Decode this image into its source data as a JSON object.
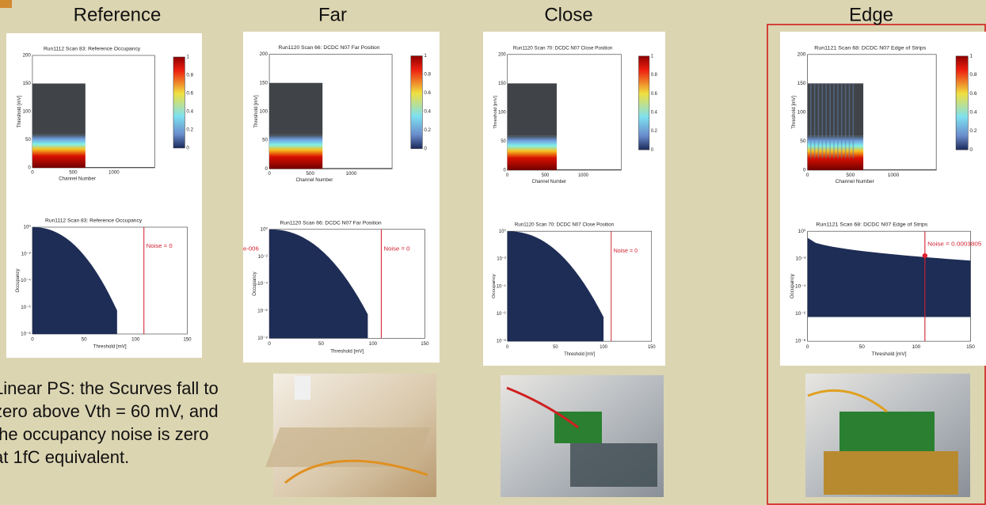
{
  "headings": [
    "Reference",
    "Far",
    "Close",
    "Edge"
  ],
  "plot_labels": {
    "top_xlabel": "Channel Number",
    "top_ylabel": "Threshold [mV]",
    "top_xticks": [
      "0",
      "500",
      "1000"
    ],
    "top_yticks": [
      "0",
      "50",
      "100",
      "150",
      "200"
    ],
    "colorbar_ticks": [
      "0",
      "0.2",
      "0.4",
      "0.6",
      "0.8",
      "1"
    ],
    "bottom_xlabel": "Threshold [mV]",
    "bottom_ylabel": "Occupancy",
    "bottom_xticks": [
      "0",
      "50",
      "100",
      "150"
    ],
    "bottom_yticks": [
      "10⁰",
      "10⁻²",
      "10⁻⁴",
      "10⁻⁶",
      "10⁻⁸"
    ]
  },
  "panels": [
    {
      "top_title": "Run1112 Scan 83: Reference Occupancy",
      "bottom_title": "Run1112 Scan 83: Reference Occupancy",
      "noise_label": "Noise = 0"
    },
    {
      "top_title": "Run1120 Scan 66: DCDC N07 Far Position",
      "bottom_title": "Run1120 Scan 66: DCDC N07 Far Position",
      "noise_label": "Noise = 0",
      "side_label": "e-006"
    },
    {
      "top_title": "Run1120 Scan 70: DCDC N07 Close Position",
      "bottom_title": "Run1120 Scan 70: DCDC N07 Close Position",
      "noise_label": "Noise = 0"
    },
    {
      "top_title": "Run1121 Scan 68: DCDC N07 Edge of Strips",
      "bottom_title": "Run1121 Scan 68: DCDC N07 Edge of Strips",
      "noise_label": "Noise = 0.0003805"
    }
  ],
  "note_lines": [
    "Linear PS: the Scurves fall to",
    "zero above Vth = 60 mV, and",
    "the occupancy noise is zero",
    "at 1fC equivalent."
  ]
}
